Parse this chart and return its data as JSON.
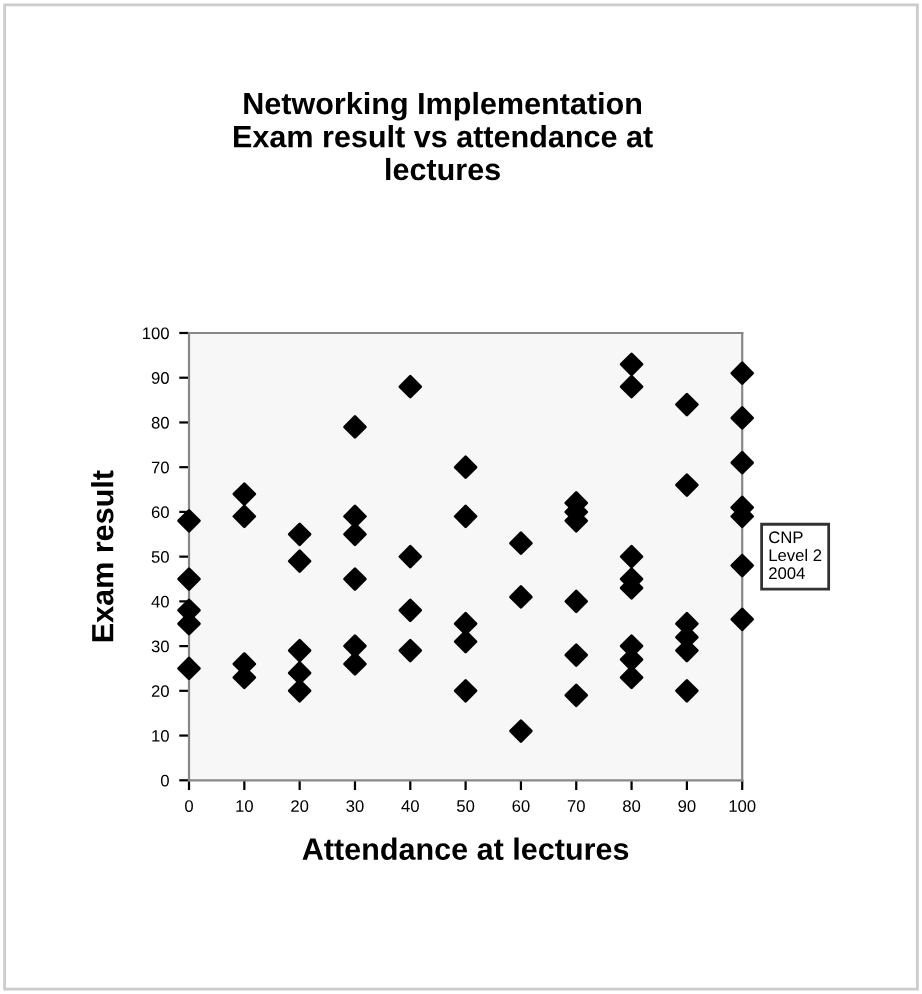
{
  "chart_data": {
    "type": "scatter",
    "title": "Networking Implementation\nExam result vs attendance at\nlectures",
    "xlabel": "Attendance at lectures",
    "ylabel": "Exam result",
    "xlim": [
      0,
      100
    ],
    "xticks": [
      0,
      10,
      20,
      30,
      40,
      50,
      60,
      70,
      80,
      90,
      100
    ],
    "ylim": [
      0,
      100
    ],
    "yticks": [
      0,
      10,
      20,
      30,
      40,
      50,
      60,
      70,
      80,
      90,
      100
    ],
    "grid": false,
    "legend": "right",
    "marker": "diamond",
    "series": [
      {
        "name": "CNP\nLevel 2\n2004",
        "color": "#000000",
        "x": [
          0,
          0,
          0,
          0,
          0,
          10,
          10,
          10,
          10,
          20,
          20,
          20,
          20,
          20,
          30,
          30,
          30,
          30,
          30,
          30,
          40,
          40,
          40,
          40,
          50,
          50,
          50,
          50,
          50,
          60,
          60,
          60,
          70,
          70,
          70,
          70,
          70,
          70,
          80,
          80,
          80,
          80,
          80,
          80,
          80,
          80,
          90,
          90,
          90,
          90,
          90,
          90,
          100,
          100,
          100,
          100,
          100,
          100,
          100
        ],
        "values": [
          58,
          45,
          38,
          35,
          25,
          64,
          59,
          26,
          23,
          55,
          49,
          29,
          24,
          20,
          79,
          59,
          55,
          45,
          30,
          26,
          88,
          50,
          38,
          29,
          70,
          59,
          35,
          31,
          20,
          53,
          41,
          11,
          62,
          60,
          58,
          40,
          28,
          19,
          93,
          88,
          50,
          45,
          43,
          30,
          27,
          23,
          84,
          66,
          35,
          32,
          29,
          20,
          91,
          81,
          71,
          61,
          59,
          48,
          36
        ]
      }
    ]
  }
}
